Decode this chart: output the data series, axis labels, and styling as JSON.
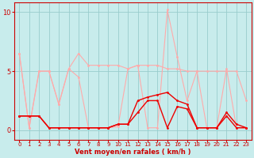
{
  "x": [
    0,
    1,
    2,
    3,
    4,
    5,
    6,
    7,
    8,
    9,
    10,
    11,
    12,
    13,
    14,
    15,
    16,
    17,
    18,
    19,
    20,
    21,
    22,
    23
  ],
  "line_light1_y": [
    6.5,
    0.2,
    5.0,
    5.0,
    2.2,
    5.2,
    6.5,
    5.5,
    5.5,
    5.5,
    5.5,
    5.2,
    5.5,
    5.5,
    5.5,
    5.2,
    5.2,
    5.0,
    5.0,
    5.0,
    5.0,
    5.0,
    5.0,
    2.5
  ],
  "line_light2_y": [
    6.5,
    0.2,
    5.0,
    5.0,
    2.2,
    5.2,
    4.5,
    0.2,
    0.2,
    0.2,
    0.3,
    5.2,
    5.5,
    0.2,
    0.2,
    10.2,
    6.2,
    2.5,
    5.0,
    0.2,
    0.2,
    5.2,
    0.2,
    0.2
  ],
  "line_dark1_y": [
    1.2,
    1.2,
    1.2,
    0.2,
    0.2,
    0.2,
    0.2,
    0.2,
    0.2,
    0.2,
    0.5,
    0.5,
    1.5,
    2.5,
    2.5,
    0.2,
    2.0,
    1.8,
    0.2,
    0.2,
    0.2,
    1.2,
    0.2,
    0.2
  ],
  "line_dark2_y": [
    1.2,
    1.2,
    1.2,
    0.2,
    0.2,
    0.2,
    0.2,
    0.2,
    0.2,
    0.2,
    0.5,
    0.5,
    2.5,
    2.8,
    3.0,
    3.2,
    2.5,
    2.2,
    0.2,
    0.2,
    0.2,
    1.5,
    0.5,
    0.2
  ],
  "background_color": "#c8ecec",
  "grid_color": "#99cccc",
  "line_color_light": "#ffaaaa",
  "line_color_dark": "#ee0000",
  "tick_label_color": "#cc0000",
  "xlabel": "Vent moyen/en rafales ( km/h )",
  "yticks": [
    0,
    5,
    10
  ],
  "xticks": [
    0,
    1,
    2,
    3,
    4,
    5,
    6,
    7,
    8,
    9,
    10,
    11,
    12,
    13,
    14,
    15,
    16,
    17,
    18,
    19,
    20,
    21,
    22,
    23
  ],
  "ylim": [
    -0.8,
    10.8
  ],
  "xlim": [
    -0.5,
    23.5
  ]
}
